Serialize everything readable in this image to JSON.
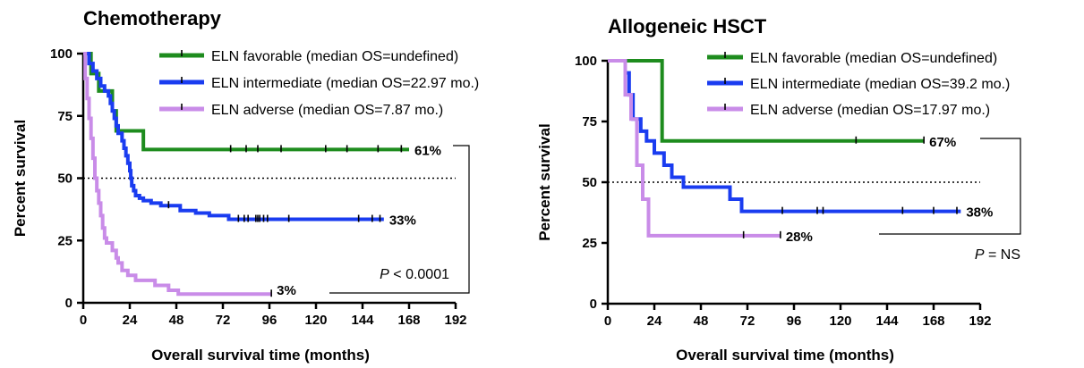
{
  "chart_data": [
    {
      "type": "line",
      "subtype": "kaplan-meier",
      "title": "Chemotherapy",
      "xlabel": "Overall survival time (months)",
      "ylabel": "Percent survival",
      "xlim": [
        0,
        192
      ],
      "ylim": [
        0,
        100
      ],
      "xticks": [
        0,
        24,
        48,
        72,
        96,
        120,
        144,
        168,
        192
      ],
      "yticks": [
        0,
        25,
        50,
        75,
        100
      ],
      "reference_line": 50,
      "legend_position": "top-right",
      "pvalue": {
        "prefix": "P",
        "text": " < 0.0001"
      },
      "series": [
        {
          "name": "ELN favorable (median OS=undefined)",
          "color": "#1e8c1e",
          "end_label": "61%",
          "steps": [
            [
              0,
              100
            ],
            [
              4,
              92
            ],
            [
              8,
              85
            ],
            [
              15,
              77
            ],
            [
              17,
              69
            ],
            [
              31,
              61.5
            ],
            [
              168,
              61.5
            ]
          ],
          "censors": [
            76,
            84,
            90,
            102,
            125,
            136,
            152,
            164
          ]
        },
        {
          "name": "ELN intermediate (median OS=22.97 mo.)",
          "color": "#1a3cf0",
          "end_label": "33%",
          "steps": [
            [
              0,
              100
            ],
            [
              3,
              96
            ],
            [
              5,
              93
            ],
            [
              7,
              90
            ],
            [
              9,
              87
            ],
            [
              11,
              85
            ],
            [
              13,
              83
            ],
            [
              14,
              80
            ],
            [
              15,
              77
            ],
            [
              16,
              74
            ],
            [
              17,
              71
            ],
            [
              18,
              68
            ],
            [
              20,
              65
            ],
            [
              21,
              62
            ],
            [
              22,
              59
            ],
            [
              23,
              56
            ],
            [
              24,
              53
            ],
            [
              24.5,
              50
            ],
            [
              25,
              47
            ],
            [
              26,
              45
            ],
            [
              27,
              43
            ],
            [
              29,
              42
            ],
            [
              31,
              41
            ],
            [
              35,
              40
            ],
            [
              40,
              39
            ],
            [
              50,
              37
            ],
            [
              58,
              36
            ],
            [
              65,
              35
            ],
            [
              75,
              33.5
            ],
            [
              155,
              33.5
            ]
          ],
          "censors": [
            44,
            80,
            83,
            85,
            89,
            90,
            91,
            93,
            95,
            106,
            142,
            149,
            153
          ]
        },
        {
          "name": "ELN adverse (median OS=7.87 mo.)",
          "color": "#c98ce8",
          "end_label": "3%",
          "steps": [
            [
              0,
              100
            ],
            [
              1,
              90
            ],
            [
              2,
              82
            ],
            [
              3,
              74
            ],
            [
              4,
              66
            ],
            [
              5,
              58
            ],
            [
              6,
              50
            ],
            [
              7,
              45
            ],
            [
              8,
              40
            ],
            [
              9,
              35
            ],
            [
              10,
              30
            ],
            [
              11,
              26
            ],
            [
              12,
              24
            ],
            [
              15,
              21
            ],
            [
              17,
              18
            ],
            [
              18,
              16
            ],
            [
              20,
              13
            ],
            [
              23,
              11
            ],
            [
              27,
              9
            ],
            [
              37,
              7
            ],
            [
              44,
              5
            ],
            [
              49,
              3.5
            ],
            [
              97,
              3.5
            ]
          ],
          "censors": [
            97
          ]
        }
      ]
    },
    {
      "type": "line",
      "subtype": "kaplan-meier",
      "title": "Allogeneic HSCT",
      "xlabel": "Overall survival time (months)",
      "ylabel": "Percent survival",
      "xlim": [
        0,
        192
      ],
      "ylim": [
        0,
        100
      ],
      "xticks": [
        0,
        24,
        48,
        72,
        96,
        120,
        144,
        168,
        192
      ],
      "yticks": [
        0,
        25,
        50,
        75,
        100
      ],
      "reference_line": 50,
      "legend_position": "top-right",
      "pvalue": {
        "prefix": "P",
        "text": " = NS"
      },
      "series": [
        {
          "name": "ELN favorable (median OS=undefined)",
          "color": "#1e8c1e",
          "end_label": "67%",
          "steps": [
            [
              0,
              100
            ],
            [
              28,
              67
            ],
            [
              163,
              67
            ]
          ],
          "censors": [
            128,
            163
          ]
        },
        {
          "name": "ELN intermediate (median OS=39.2 mo.)",
          "color": "#1a3cf0",
          "end_label": "38%",
          "steps": [
            [
              0,
              100
            ],
            [
              9,
              95
            ],
            [
              11,
              86
            ],
            [
              13,
              76
            ],
            [
              17,
              71
            ],
            [
              20,
              67
            ],
            [
              24,
              62
            ],
            [
              29,
              57
            ],
            [
              33,
              52
            ],
            [
              39,
              48
            ],
            [
              63,
              43
            ],
            [
              69,
              38
            ],
            [
              182,
              38
            ]
          ],
          "censors": [
            90,
            108,
            111,
            152,
            168,
            180
          ]
        },
        {
          "name": "ELN adverse (median OS=17.97 mo.)",
          "color": "#c98ce8",
          "end_label": "28%",
          "steps": [
            [
              0,
              100
            ],
            [
              9,
              86
            ],
            [
              12,
              76
            ],
            [
              15,
              57
            ],
            [
              18,
              43
            ],
            [
              21,
              28
            ],
            [
              89,
              28
            ]
          ],
          "censors": [
            70,
            89
          ]
        }
      ]
    }
  ]
}
